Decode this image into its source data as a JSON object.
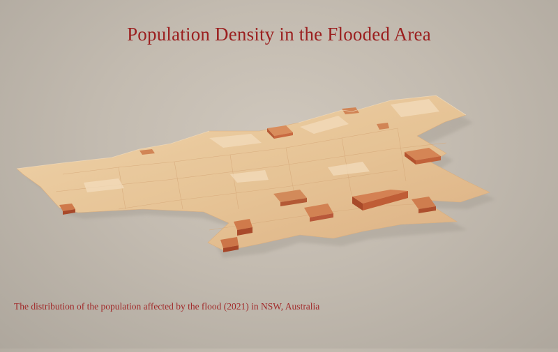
{
  "title": "Population Density in the Flooded Area",
  "caption": "The distribution of the population affected by the flood (2021) in NSW, Australia",
  "colors": {
    "background": "#c8c0b5",
    "text": "#9b2020",
    "land_low": "#e9c99c",
    "land_mid": "#dba877",
    "spike_high": "#c0623e"
  },
  "map": {
    "type": "3d population density relief map",
    "region": "flooded area, NSW"
  }
}
